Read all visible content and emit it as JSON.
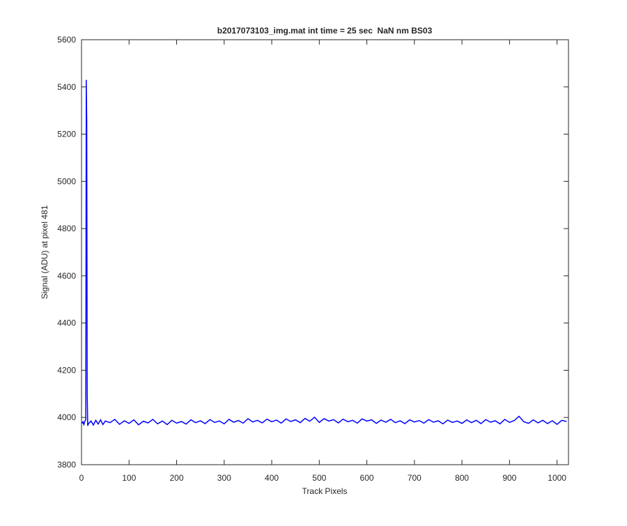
{
  "chart_data": {
    "type": "line",
    "title": "b2017073103_img.mat int time = 25 sec  NaN nm BS03",
    "x_label": "Track Pixels",
    "y_label": "Signal (ADU) at pixel 481",
    "xlim": [
      0,
      1024
    ],
    "ylim": [
      3800,
      5600
    ],
    "xticks": [
      0,
      100,
      200,
      300,
      400,
      500,
      600,
      700,
      800,
      900,
      1000
    ],
    "yticks": [
      3800,
      4000,
      4200,
      4400,
      4600,
      4800,
      5000,
      5200,
      5400,
      5600
    ],
    "series": [
      {
        "color": "#0000ff",
        "x": [
          1,
          3,
          5,
          7,
          9,
          10,
          11,
          12,
          13,
          15,
          20,
          25,
          30,
          35,
          40,
          45,
          50,
          60,
          70,
          80,
          90,
          100,
          110,
          120,
          130,
          140,
          150,
          160,
          170,
          180,
          190,
          200,
          210,
          220,
          230,
          240,
          250,
          260,
          270,
          280,
          290,
          300,
          310,
          320,
          330,
          340,
          350,
          360,
          370,
          380,
          390,
          400,
          410,
          420,
          430,
          440,
          450,
          460,
          470,
          480,
          490,
          500,
          510,
          520,
          530,
          540,
          550,
          560,
          570,
          580,
          590,
          600,
          610,
          620,
          630,
          640,
          650,
          660,
          670,
          680,
          690,
          700,
          710,
          720,
          730,
          740,
          750,
          760,
          770,
          780,
          790,
          800,
          810,
          820,
          830,
          840,
          850,
          860,
          870,
          880,
          890,
          900,
          910,
          920,
          930,
          940,
          950,
          960,
          970,
          980,
          990,
          1000,
          1010,
          1020
        ],
        "values": [
          3975,
          3982,
          3970,
          3985,
          3990,
          5430,
          5250,
          4100,
          3965,
          3975,
          3985,
          3968,
          3988,
          3972,
          3990,
          3970,
          3985,
          3978,
          3992,
          3971,
          3986,
          3975,
          3990,
          3969,
          3984,
          3977,
          3992,
          3973,
          3985,
          3970,
          3988,
          3976,
          3983,
          3972,
          3990,
          3978,
          3986,
          3974,
          3991,
          3979,
          3985,
          3973,
          3992,
          3980,
          3987,
          3976,
          3995,
          3981,
          3988,
          3977,
          3993,
          3982,
          3989,
          3976,
          3994,
          3983,
          3990,
          3978,
          3996,
          3984,
          4001,
          3979,
          3995,
          3985,
          3991,
          3977,
          3993,
          3982,
          3988,
          3976,
          3994,
          3985,
          3990,
          3975,
          3989,
          3980,
          3992,
          3978,
          3986,
          3974,
          3990,
          3981,
          3987,
          3976,
          3991,
          3980,
          3986,
          3973,
          3989,
          3979,
          3985,
          3975,
          3990,
          3978,
          3988,
          3974,
          3991,
          3980,
          3986,
          3973,
          3992,
          3979,
          3987,
          4005,
          3982,
          3975,
          3990,
          3977,
          3988,
          3974,
          3986,
          3971,
          3988,
          3983
        ]
      }
    ]
  }
}
